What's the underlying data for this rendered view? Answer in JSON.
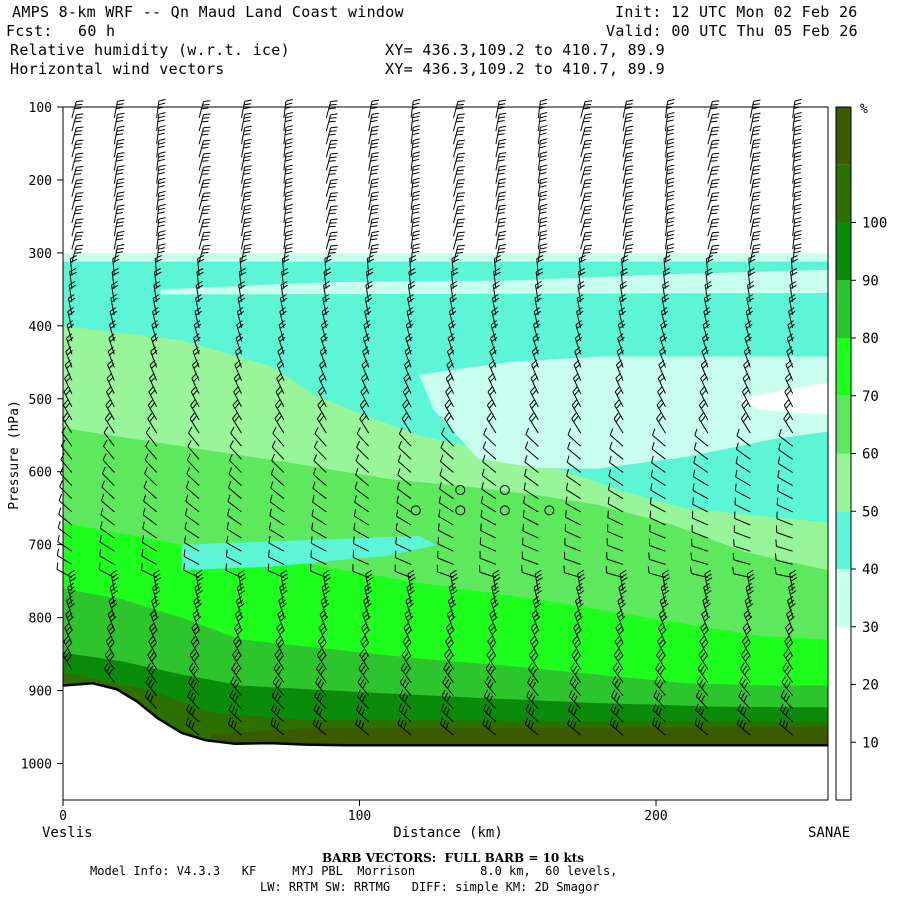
{
  "header": {
    "title": "AMPS 8-km WRF -- Qn Maud Land Coast window",
    "init": "Init: 12 UTC Mon 02 Feb 26",
    "fcst_label": "Fcst:",
    "fcst_value": "60 h",
    "valid": "Valid: 00 UTC Thu 05 Feb 26",
    "field1": "Relative humidity (w.r.t. ice)",
    "field1_xy": "XY= 436.3,109.2 to 410.7, 89.9",
    "field2": "Horizontal wind vectors",
    "field2_xy": "XY= 436.3,109.2 to 410.7, 89.9"
  },
  "footer": {
    "barb_note": "BARB VECTORS:  FULL BARB = 10 kts",
    "model_line1": "Model Info: V4.3.3   KF     MYJ PBL  Morrison         8.0 km,  60 levels,",
    "model_line2": "LW: RRTM SW: RRTMG   DIFF: simple KM: 2D Smagor"
  },
  "chart_data": {
    "type": "contour-cross-section",
    "variable": "Relative humidity (w.r.t. ice)",
    "unit": "%",
    "xlabel": "Distance (km)",
    "ylabel": "Pressure (hPa)",
    "xlim": [
      0,
      258
    ],
    "ylim": [
      1050,
      100
    ],
    "x_ticks": [
      "0",
      "100",
      "200"
    ],
    "x_tick_values": [
      0,
      100,
      200
    ],
    "y_ticks": [
      "100",
      "200",
      "300",
      "400",
      "500",
      "600",
      "700",
      "800",
      "900",
      "1000"
    ],
    "y_tick_values": [
      100,
      200,
      300,
      400,
      500,
      600,
      700,
      800,
      900,
      1000
    ],
    "left_endpoint": "Veslis",
    "right_endpoint": "SANAE",
    "colorbar": {
      "title": "%",
      "labels": [
        "10",
        "20",
        "30",
        "40",
        "50",
        "60",
        "70",
        "80",
        "90",
        "100"
      ],
      "label_values": [
        10,
        20,
        30,
        40,
        50,
        60,
        70,
        80,
        90,
        100
      ],
      "colors": [
        "#ffffff",
        "#ffffff",
        "#ffffff",
        "#c8ffee",
        "#5cf5d5",
        "#99f599",
        "#5ee85e",
        "#1eff1e",
        "#2ec42e",
        "#0a8c0a",
        "#2e7000",
        "#3c5a00"
      ]
    },
    "terrain": [
      {
        "x": 0,
        "p": 893
      },
      {
        "x": 10,
        "p": 890
      },
      {
        "x": 18,
        "p": 898
      },
      {
        "x": 25,
        "p": 915
      },
      {
        "x": 32,
        "p": 938
      },
      {
        "x": 40,
        "p": 958
      },
      {
        "x": 48,
        "p": 968
      },
      {
        "x": 58,
        "p": 973
      },
      {
        "x": 70,
        "p": 972
      },
      {
        "x": 82,
        "p": 974
      },
      {
        "x": 95,
        "p": 975
      },
      {
        "x": 110,
        "p": 975
      },
      {
        "x": 150,
        "p": 975
      },
      {
        "x": 200,
        "p": 975
      },
      {
        "x": 258,
        "p": 975
      }
    ],
    "regions": [
      {
        "rh": 35,
        "color": "#c8ffee",
        "points": [
          [
            0,
            300
          ],
          [
            258,
            300
          ],
          [
            258,
            1050
          ],
          [
            0,
            1050
          ]
        ]
      },
      {
        "rh": 45,
        "color": "#5cf5d5",
        "points": [
          [
            0,
            312
          ],
          [
            258,
            312
          ],
          [
            258,
            1050
          ],
          [
            0,
            1050
          ]
        ]
      },
      {
        "rh": 55,
        "color": "#99f599",
        "points": [
          [
            0,
            400
          ],
          [
            40,
            420
          ],
          [
            70,
            455
          ],
          [
            85,
            495
          ],
          [
            100,
            520
          ],
          [
            120,
            550
          ],
          [
            150,
            578
          ],
          [
            170,
            600
          ],
          [
            190,
            628
          ],
          [
            210,
            650
          ],
          [
            258,
            670
          ],
          [
            258,
            1050
          ],
          [
            0,
            1050
          ]
        ]
      },
      {
        "rh": 65,
        "color": "#5ee85e",
        "points": [
          [
            0,
            540
          ],
          [
            40,
            565
          ],
          [
            80,
            590
          ],
          [
            110,
            610
          ],
          [
            140,
            622
          ],
          [
            160,
            632
          ],
          [
            180,
            645
          ],
          [
            205,
            672
          ],
          [
            230,
            710
          ],
          [
            258,
            735
          ],
          [
            258,
            1050
          ],
          [
            0,
            1050
          ]
        ]
      },
      {
        "rh": 75,
        "color": "#1eff1e",
        "points": [
          [
            0,
            670
          ],
          [
            40,
            700
          ],
          [
            80,
            725
          ],
          [
            120,
            752
          ],
          [
            160,
            775
          ],
          [
            190,
            795
          ],
          [
            215,
            812
          ],
          [
            235,
            825
          ],
          [
            258,
            830
          ],
          [
            258,
            1050
          ],
          [
            0,
            1050
          ]
        ]
      },
      {
        "rh": 85,
        "color": "#2ec42e",
        "points": [
          [
            0,
            760
          ],
          [
            20,
            775
          ],
          [
            40,
            800
          ],
          [
            60,
            830
          ],
          [
            90,
            843
          ],
          [
            120,
            856
          ],
          [
            150,
            866
          ],
          [
            180,
            878
          ],
          [
            210,
            890
          ],
          [
            240,
            893
          ],
          [
            258,
            893
          ],
          [
            258,
            1050
          ],
          [
            0,
            1050
          ]
        ]
      },
      {
        "rh": 95,
        "color": "#0a8c0a",
        "points": [
          [
            0,
            848
          ],
          [
            20,
            860
          ],
          [
            40,
            878
          ],
          [
            60,
            893
          ],
          [
            100,
            902
          ],
          [
            140,
            910
          ],
          [
            180,
            917
          ],
          [
            220,
            922
          ],
          [
            258,
            923
          ],
          [
            258,
            1050
          ],
          [
            0,
            1050
          ]
        ]
      },
      {
        "rh": 100,
        "color": "#2e7000",
        "points": [
          [
            0,
            875
          ],
          [
            30,
            900
          ],
          [
            50,
            930
          ],
          [
            80,
            940
          ],
          [
            258,
            943
          ],
          [
            258,
            1050
          ],
          [
            0,
            1050
          ]
        ]
      },
      {
        "rh": 100,
        "color": "#3c5a00",
        "points": [
          [
            50,
            960
          ],
          [
            80,
            952
          ],
          [
            258,
            950
          ],
          [
            258,
            1050
          ],
          [
            50,
            1050
          ]
        ]
      },
      {
        "rh": 45,
        "color": "#5cf5d5",
        "points": [
          [
            40,
            700
          ],
          [
            120,
            688
          ],
          [
            126,
            700
          ],
          [
            110,
            715
          ],
          [
            70,
            730
          ],
          [
            40,
            735
          ]
        ]
      },
      {
        "rh": 55,
        "color": "#99f599",
        "points": [
          [
            60,
            523
          ],
          [
            80,
            516
          ],
          [
            86,
            510
          ],
          [
            80,
            530
          ],
          [
            60,
            540
          ]
        ]
      },
      {
        "rh": 35,
        "color": "#c8ffee",
        "points": [
          [
            33,
            350
          ],
          [
            90,
            340
          ],
          [
            150,
            338
          ],
          [
            200,
            330
          ],
          [
            258,
            323
          ],
          [
            258,
            355
          ],
          [
            33,
            357
          ]
        ]
      },
      {
        "rh": 35,
        "color": "#c8ffee",
        "points": [
          [
            120,
            467
          ],
          [
            150,
            450
          ],
          [
            180,
            442
          ],
          [
            258,
            442
          ],
          [
            258,
            545
          ],
          [
            240,
            555
          ],
          [
            210,
            580
          ],
          [
            180,
            596
          ],
          [
            160,
            595
          ],
          [
            140,
            582
          ],
          [
            125,
            515
          ]
        ]
      },
      {
        "rh": 25,
        "color": "#ffffff",
        "points": [
          [
            227,
            500
          ],
          [
            258,
            478
          ],
          [
            258,
            522
          ],
          [
            235,
            515
          ]
        ]
      },
      {
        "rh": 15,
        "color": "#ffffff",
        "points": [
          [
            0,
            100
          ],
          [
            258,
            100
          ],
          [
            258,
            300
          ],
          [
            0,
            300
          ]
        ]
      }
    ],
    "station_markers": [
      {
        "x": 119,
        "p": 653
      },
      {
        "x": 134,
        "p": 653
      },
      {
        "x": 149,
        "p": 653
      },
      {
        "x": 164,
        "p": 653
      },
      {
        "x": 134,
        "p": 625
      },
      {
        "x": 149,
        "p": 625
      }
    ]
  }
}
